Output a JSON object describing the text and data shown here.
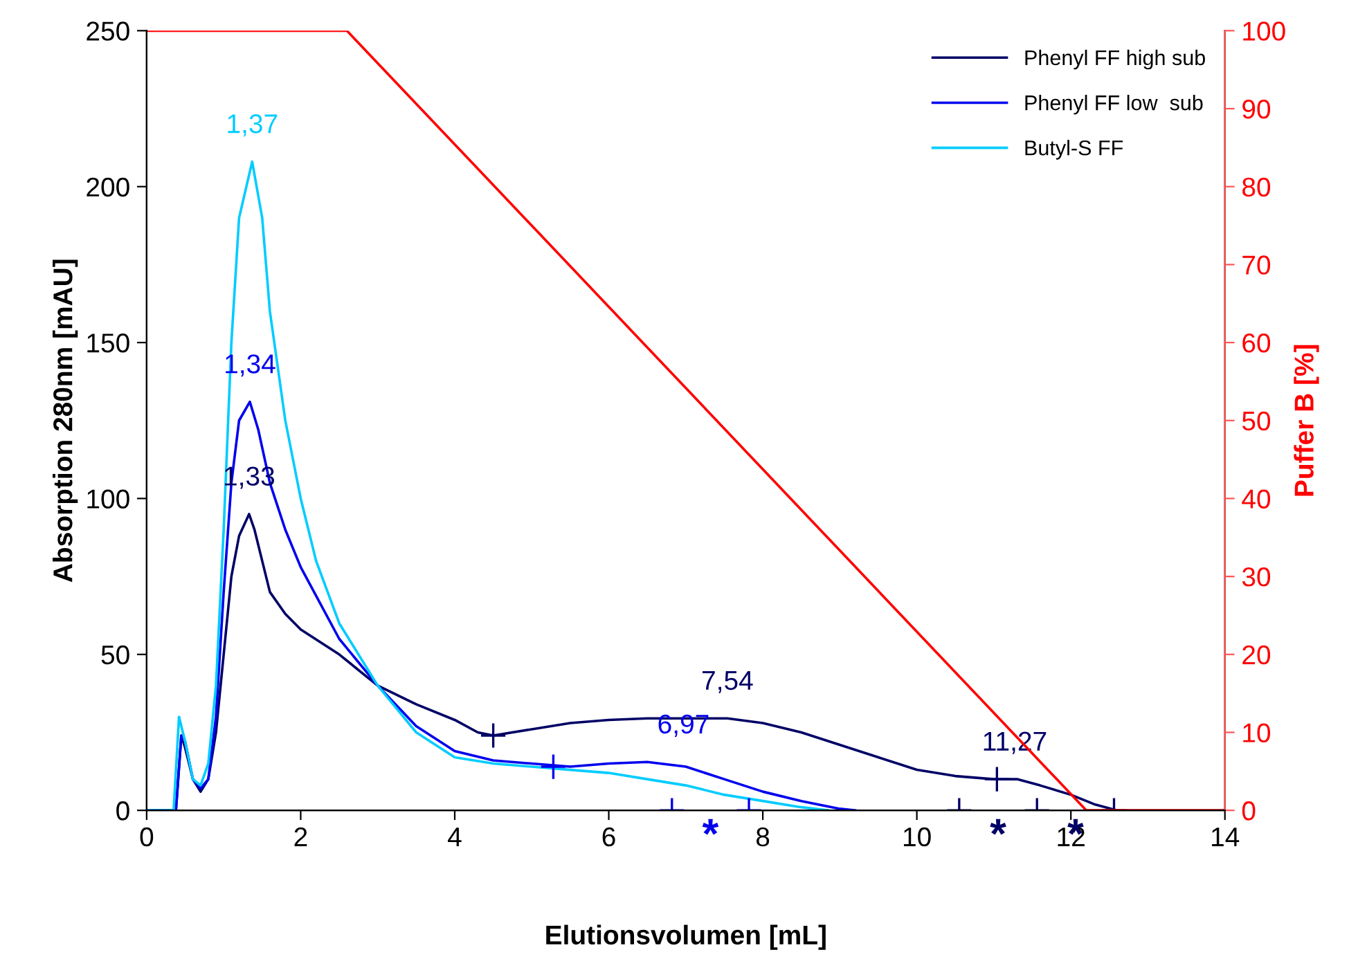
{
  "chart_data": {
    "type": "line",
    "xlabel": "Elutionsvolumen [mL]",
    "ylabel": "Absorption 280nm [mAU]",
    "y2label": "Puffer B [%]",
    "xlim": [
      0,
      14
    ],
    "xticks": [
      0,
      2,
      4,
      6,
      8,
      10,
      12,
      14
    ],
    "ylim": [
      0,
      250
    ],
    "yticks": [
      0,
      50,
      100,
      150,
      200,
      250
    ],
    "y2lim": [
      0,
      100
    ],
    "y2ticks": [
      0,
      10,
      20,
      30,
      40,
      50,
      60,
      70,
      80,
      90,
      100
    ],
    "grid": false,
    "legend": "top right",
    "marker": "none",
    "line_style": "solid",
    "series": [
      {
        "name": "Phenyl FF high sub",
        "color": "#000066",
        "x": [
          0,
          0.38,
          0.45,
          0.5,
          0.6,
          0.7,
          0.8,
          0.9,
          1.0,
          1.1,
          1.2,
          1.33,
          1.4,
          1.5,
          1.6,
          1.8,
          2.0,
          2.5,
          3.0,
          3.5,
          4.0,
          4.3,
          4.5,
          5.0,
          5.5,
          6.0,
          6.5,
          7.0,
          7.54,
          8.0,
          8.5,
          9.0,
          9.5,
          10.0,
          10.5,
          11.0,
          11.3,
          11.6,
          12.0,
          12.3,
          12.6
        ],
        "values": [
          0,
          0,
          24,
          20,
          10,
          6,
          10,
          25,
          50,
          75,
          88,
          95,
          90,
          80,
          70,
          63,
          58,
          50,
          40,
          34,
          29,
          25,
          24,
          26,
          28,
          29,
          29.5,
          29.5,
          29.5,
          28,
          25,
          21,
          17,
          13,
          11,
          10,
          10,
          8,
          5,
          2,
          0
        ]
      },
      {
        "name": "Phenyl FF low  sub",
        "color": "#0000ee",
        "x": [
          0,
          0.38,
          0.45,
          0.5,
          0.6,
          0.7,
          0.8,
          0.9,
          1.0,
          1.1,
          1.2,
          1.34,
          1.45,
          1.6,
          1.8,
          2.0,
          2.5,
          3.0,
          3.5,
          4.0,
          4.5,
          5.0,
          5.5,
          6.0,
          6.5,
          7.0,
          7.5,
          8.0,
          8.5,
          9.0,
          9.2
        ],
        "values": [
          0,
          0,
          24,
          22,
          10,
          7,
          10,
          30,
          70,
          105,
          125,
          131,
          122,
          105,
          90,
          78,
          55,
          40,
          27,
          19,
          16,
          15,
          14,
          15,
          15.5,
          14,
          10,
          6,
          3,
          0.5,
          0
        ]
      },
      {
        "name": "Butyl-S FF",
        "color": "#00ccff",
        "x": [
          0,
          0.35,
          0.42,
          0.5,
          0.6,
          0.7,
          0.8,
          0.9,
          1.0,
          1.1,
          1.2,
          1.37,
          1.5,
          1.6,
          1.8,
          2.0,
          2.2,
          2.5,
          3.0,
          3.5,
          4.0,
          4.5,
          5.0,
          5.5,
          6.0,
          6.5,
          7.0,
          7.5,
          8.0,
          8.5,
          8.85
        ],
        "values": [
          0,
          0,
          30,
          22,
          10,
          8,
          15,
          40,
          90,
          150,
          190,
          208,
          190,
          160,
          125,
          100,
          80,
          60,
          40,
          25,
          17,
          15,
          14,
          13,
          12,
          10,
          8,
          5,
          3,
          1,
          0
        ]
      },
      {
        "color": "#ff0000",
        "axis": "y2",
        "x": [
          0,
          2.6,
          12.2,
          14
        ],
        "values": [
          100,
          100,
          0,
          0
        ]
      },
      {
        "type": "scatter",
        "marker": "cross",
        "color": "#000066",
        "x": [
          4.5,
          10.55,
          11.04,
          11.56,
          12.56
        ],
        "values": [
          24,
          0,
          10,
          0,
          0
        ]
      },
      {
        "type": "scatter",
        "marker": "cross",
        "color": "#0000ee",
        "x": [
          5.28,
          6.82,
          7.82
        ],
        "values": [
          14,
          0,
          0
        ]
      }
    ],
    "annotations": [
      {
        "text": "1,33",
        "x": 1.33,
        "y": 95
      },
      {
        "text": "1,34",
        "x": 1.34,
        "y": 131
      },
      {
        "text": "1,37",
        "x": 1.37,
        "y": 208
      },
      {
        "text": "7,54",
        "x": 7.54,
        "y": 29.5
      },
      {
        "text": "6,97",
        "x": 6.97,
        "y": 15.5
      },
      {
        "text": "11,27",
        "x": 11.27,
        "y": 10
      },
      "*",
      "*",
      "*"
    ]
  }
}
